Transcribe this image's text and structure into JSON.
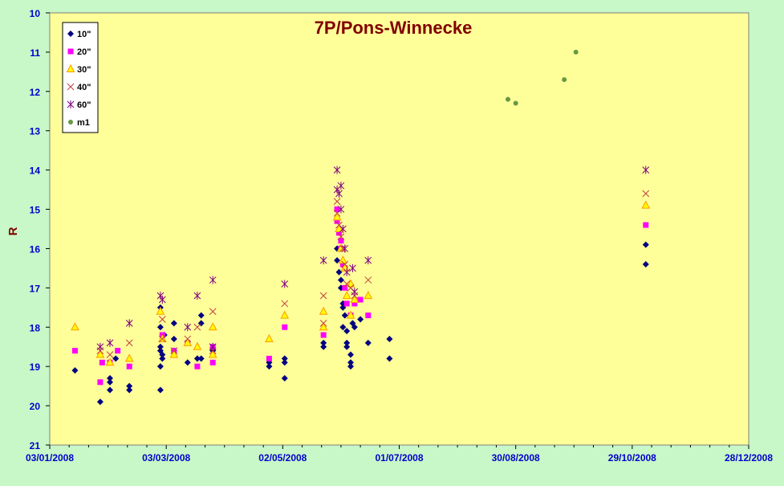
{
  "chart_data": {
    "type": "scatter",
    "title": "7P/Pons-Winnecke",
    "xlabel": "",
    "ylabel": "R",
    "x_axis": {
      "min": "2008-01-03",
      "max": "2008-12-28",
      "tick_labels": [
        "03/01/2008",
        "03/03/2008",
        "02/05/2008",
        "01/07/2008",
        "30/08/2008",
        "29/10/2008",
        "28/12/2008"
      ]
    },
    "y_axis": {
      "min": 10,
      "max": 21,
      "inverted": true,
      "tick_labels": [
        "10",
        "11",
        "12",
        "13",
        "14",
        "15",
        "16",
        "17",
        "18",
        "19",
        "20",
        "21"
      ]
    },
    "grid": false,
    "legend_position": "top-left",
    "colors": {
      "plot_background": "#ffff99",
      "frame_background": "#c8f7c8",
      "axis_text": "#0000cc",
      "title": "#800000"
    },
    "series": [
      {
        "name": "10\"",
        "marker": "diamond",
        "color": "#000080",
        "points": [
          [
            "2008-01-16",
            19.1
          ],
          [
            "2008-01-29",
            19.9
          ],
          [
            "2008-02-03",
            19.3
          ],
          [
            "2008-02-03",
            19.4
          ],
          [
            "2008-02-03",
            19.6
          ],
          [
            "2008-02-06",
            18.8
          ],
          [
            "2008-02-13",
            19.5
          ],
          [
            "2008-02-13",
            19.6
          ],
          [
            "2008-02-29",
            17.5
          ],
          [
            "2008-02-29",
            18.0
          ],
          [
            "2008-02-29",
            18.5
          ],
          [
            "2008-02-29",
            18.6
          ],
          [
            "2008-03-01",
            18.7
          ],
          [
            "2008-03-01",
            18.8
          ],
          [
            "2008-03-02",
            18.2
          ],
          [
            "2008-02-29",
            19.0
          ],
          [
            "2008-02-29",
            19.6
          ],
          [
            "2008-03-07",
            17.9
          ],
          [
            "2008-03-07",
            18.3
          ],
          [
            "2008-03-07",
            18.6
          ],
          [
            "2008-03-14",
            18.9
          ],
          [
            "2008-03-19",
            18.8
          ],
          [
            "2008-03-21",
            17.7
          ],
          [
            "2008-03-21",
            17.9
          ],
          [
            "2008-03-21",
            18.8
          ],
          [
            "2008-03-27",
            18.6
          ],
          [
            "2008-04-25",
            18.9
          ],
          [
            "2008-04-25",
            19.0
          ],
          [
            "2008-05-03",
            18.8
          ],
          [
            "2008-05-03",
            19.3
          ],
          [
            "2008-05-03",
            18.9
          ],
          [
            "2008-05-23",
            18.4
          ],
          [
            "2008-05-23",
            18.5
          ],
          [
            "2008-05-30",
            16.3
          ],
          [
            "2008-05-30",
            16.0
          ],
          [
            "2008-05-31",
            16.6
          ],
          [
            "2008-06-01",
            16.8
          ],
          [
            "2008-06-01",
            17.0
          ],
          [
            "2008-06-02",
            17.4
          ],
          [
            "2008-06-02",
            17.5
          ],
          [
            "2008-06-02",
            18.0
          ],
          [
            "2008-06-03",
            17.7
          ],
          [
            "2008-06-04",
            18.1
          ],
          [
            "2008-06-04",
            18.4
          ],
          [
            "2008-06-04",
            18.5
          ],
          [
            "2008-06-06",
            18.7
          ],
          [
            "2008-06-06",
            18.9
          ],
          [
            "2008-06-06",
            19.0
          ],
          [
            "2008-06-07",
            17.9
          ],
          [
            "2008-06-08",
            18.0
          ],
          [
            "2008-06-11",
            17.8
          ],
          [
            "2008-06-15",
            18.4
          ],
          [
            "2008-06-26",
            18.3
          ],
          [
            "2008-06-26",
            18.8
          ],
          [
            "2008-11-05",
            15.9
          ],
          [
            "2008-11-05",
            16.4
          ]
        ]
      },
      {
        "name": "20\"",
        "marker": "square",
        "color": "#ff00ff",
        "points": [
          [
            "2008-01-16",
            18.6
          ],
          [
            "2008-01-29",
            19.4
          ],
          [
            "2008-01-30",
            18.9
          ],
          [
            "2008-02-03",
            18.9
          ],
          [
            "2008-02-07",
            18.6
          ],
          [
            "2008-02-13",
            19.0
          ],
          [
            "2008-03-01",
            18.2
          ],
          [
            "2008-03-07",
            18.6
          ],
          [
            "2008-03-14",
            18.4
          ],
          [
            "2008-03-19",
            19.0
          ],
          [
            "2008-03-27",
            18.5
          ],
          [
            "2008-03-27",
            18.9
          ],
          [
            "2008-04-25",
            18.8
          ],
          [
            "2008-05-03",
            18.0
          ],
          [
            "2008-05-23",
            18.2
          ],
          [
            "2008-05-30",
            15.0
          ],
          [
            "2008-05-30",
            15.3
          ],
          [
            "2008-05-31",
            15.6
          ],
          [
            "2008-06-01",
            15.8
          ],
          [
            "2008-06-01",
            16.0
          ],
          [
            "2008-06-02",
            16.4
          ],
          [
            "2008-06-03",
            16.5
          ],
          [
            "2008-06-03",
            17.0
          ],
          [
            "2008-06-04",
            17.4
          ],
          [
            "2008-06-06",
            17.7
          ],
          [
            "2008-06-08",
            17.4
          ],
          [
            "2008-06-11",
            17.3
          ],
          [
            "2008-06-15",
            17.7
          ],
          [
            "2008-11-05",
            15.4
          ]
        ]
      },
      {
        "name": "30\"",
        "marker": "triangle",
        "color": "#ff9900",
        "points": [
          [
            "2008-01-16",
            18.0
          ],
          [
            "2008-01-29",
            18.7
          ],
          [
            "2008-02-03",
            18.9
          ],
          [
            "2008-02-13",
            18.8
          ],
          [
            "2008-02-29",
            17.6
          ],
          [
            "2008-03-01",
            18.3
          ],
          [
            "2008-03-07",
            18.7
          ],
          [
            "2008-03-14",
            18.4
          ],
          [
            "2008-03-19",
            18.5
          ],
          [
            "2008-03-27",
            18.0
          ],
          [
            "2008-03-27",
            18.7
          ],
          [
            "2008-04-25",
            18.3
          ],
          [
            "2008-05-03",
            17.7
          ],
          [
            "2008-05-23",
            17.6
          ],
          [
            "2008-05-23",
            18.0
          ],
          [
            "2008-05-30",
            15.2
          ],
          [
            "2008-05-31",
            15.5
          ],
          [
            "2008-06-01",
            16.0
          ],
          [
            "2008-06-02",
            16.3
          ],
          [
            "2008-06-03",
            16.5
          ],
          [
            "2008-06-04",
            17.2
          ],
          [
            "2008-06-06",
            16.9
          ],
          [
            "2008-06-06",
            17.7
          ],
          [
            "2008-06-08",
            17.3
          ],
          [
            "2008-06-15",
            17.2
          ],
          [
            "2008-11-05",
            14.9
          ]
        ]
      },
      {
        "name": "40\"",
        "marker": "x",
        "color": "#c04040",
        "points": [
          [
            "2008-01-29",
            18.6
          ],
          [
            "2008-02-03",
            18.7
          ],
          [
            "2008-02-13",
            18.4
          ],
          [
            "2008-03-01",
            17.8
          ],
          [
            "2008-03-01",
            18.3
          ],
          [
            "2008-03-07",
            18.6
          ],
          [
            "2008-03-14",
            18.3
          ],
          [
            "2008-03-19",
            18.0
          ],
          [
            "2008-03-27",
            17.6
          ],
          [
            "2008-03-27",
            18.6
          ],
          [
            "2008-05-03",
            17.4
          ],
          [
            "2008-05-23",
            17.2
          ],
          [
            "2008-05-23",
            17.9
          ],
          [
            "2008-05-30",
            14.8
          ],
          [
            "2008-05-30",
            15.1
          ],
          [
            "2008-05-31",
            15.4
          ],
          [
            "2008-06-01",
            15.7
          ],
          [
            "2008-06-02",
            16.0
          ],
          [
            "2008-06-03",
            16.4
          ],
          [
            "2008-06-04",
            16.9
          ],
          [
            "2008-06-06",
            17.0
          ],
          [
            "2008-06-08",
            17.2
          ],
          [
            "2008-06-15",
            16.8
          ],
          [
            "2008-11-05",
            14.6
          ]
        ]
      },
      {
        "name": "60\"",
        "marker": "star",
        "color": "#800080",
        "points": [
          [
            "2008-01-29",
            18.5
          ],
          [
            "2008-02-03",
            18.4
          ],
          [
            "2008-02-13",
            17.9
          ],
          [
            "2008-02-29",
            17.2
          ],
          [
            "2008-03-01",
            17.3
          ],
          [
            "2008-03-14",
            18.0
          ],
          [
            "2008-03-19",
            17.2
          ],
          [
            "2008-03-27",
            16.8
          ],
          [
            "2008-03-27",
            18.5
          ],
          [
            "2008-05-03",
            16.9
          ],
          [
            "2008-05-23",
            16.3
          ],
          [
            "2008-05-30",
            14.0
          ],
          [
            "2008-05-30",
            14.5
          ],
          [
            "2008-05-31",
            14.6
          ],
          [
            "2008-06-01",
            14.4
          ],
          [
            "2008-06-01",
            15.0
          ],
          [
            "2008-06-02",
            15.5
          ],
          [
            "2008-06-03",
            16.0
          ],
          [
            "2008-06-04",
            16.6
          ],
          [
            "2008-06-07",
            16.5
          ],
          [
            "2008-06-08",
            17.1
          ],
          [
            "2008-06-15",
            16.3
          ],
          [
            "2008-11-05",
            14.0
          ]
        ]
      },
      {
        "name": "m1",
        "marker": "circle",
        "color": "#669944",
        "points": [
          [
            "2008-08-26",
            12.2
          ],
          [
            "2008-08-30",
            12.3
          ],
          [
            "2008-09-24",
            11.7
          ],
          [
            "2008-09-30",
            11.0
          ]
        ]
      }
    ]
  }
}
